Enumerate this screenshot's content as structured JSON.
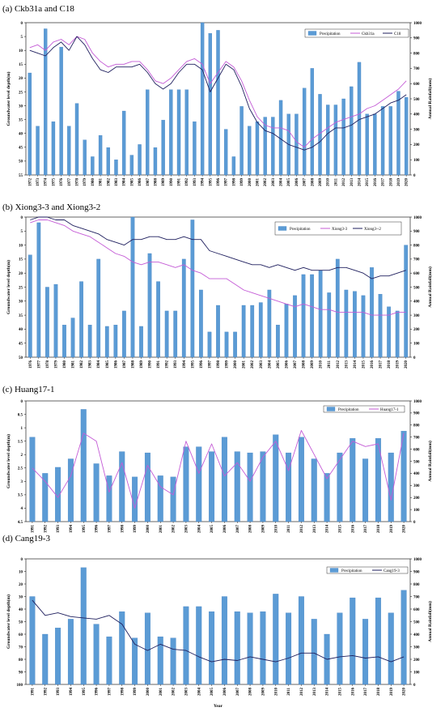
{
  "chart_data": [
    {
      "type": "bar",
      "title": "(a) Ckb31a and C18",
      "ylabel": "Groundwater level depth(m)",
      "y2label": "Annual Rainfall(mm)",
      "ylim": [
        55,
        0
      ],
      "y2lim": [
        0,
        1000
      ],
      "yticks": [
        0,
        5,
        10,
        15,
        20,
        25,
        30,
        35,
        40,
        45,
        50,
        55
      ],
      "y2ticks": [
        0,
        100,
        200,
        300,
        400,
        500,
        600,
        700,
        800,
        900,
        1000
      ],
      "years": [
        "1972",
        "1973",
        "1974",
        "1975",
        "1976",
        "1977",
        "1978",
        "1979",
        "1980",
        "1981",
        "1982",
        "1983",
        "1984",
        "1985",
        "1986",
        "1987",
        "1988",
        "1989",
        "1990",
        "1991",
        "1992",
        "1993",
        "1994",
        "1995",
        "1996",
        "1997",
        "1998",
        "1999",
        "2000",
        "2001",
        "2002",
        "2003",
        "2004",
        "2005",
        "2006",
        "2007",
        "2008",
        "2009",
        "2010",
        "2011",
        "2012",
        "2013",
        "2014",
        "2015",
        "2016",
        "2017",
        "2018",
        "2019",
        "2020"
      ],
      "series": [
        {
          "name": "Precipitation",
          "kind": "bar",
          "axis": "right",
          "color": "#5b9bd5",
          "values": [
            670,
            320,
            960,
            350,
            840,
            320,
            470,
            230,
            120,
            260,
            180,
            100,
            420,
            130,
            200,
            560,
            180,
            360,
            560,
            560,
            560,
            350,
            1000,
            930,
            950,
            300,
            120,
            450,
            320,
            350,
            380,
            380,
            490,
            400,
            400,
            570,
            700,
            530,
            460,
            460,
            500,
            580,
            740,
            400,
            400,
            450,
            450,
            550,
            510
          ]
        },
        {
          "name": "Ckb31a",
          "kind": "line",
          "axis": "left",
          "color": "#c45bd6",
          "values": [
            9,
            8,
            10,
            7,
            6,
            8,
            5,
            6,
            11,
            14,
            16,
            15,
            15,
            14,
            14,
            17,
            21,
            22,
            20,
            17,
            14,
            13,
            15,
            22,
            18,
            14,
            16,
            21,
            28,
            34,
            37,
            38,
            38,
            39,
            43,
            45,
            42,
            40,
            38,
            36,
            35,
            34,
            33,
            31,
            30,
            28,
            26,
            24,
            21
          ]
        },
        {
          "name": "C18",
          "kind": "line",
          "axis": "left",
          "color": "#1f1f5e",
          "values": [
            10,
            11,
            12,
            9,
            7,
            10,
            5,
            8,
            13,
            17,
            18,
            16,
            16,
            16,
            15,
            18,
            22,
            24,
            22,
            18,
            15,
            15,
            17,
            25,
            20,
            15,
            17,
            23,
            31,
            36,
            39,
            40,
            42,
            44,
            45,
            46,
            45,
            43,
            40,
            38,
            38,
            37,
            35,
            34,
            33,
            31,
            29,
            28,
            26
          ]
        }
      ],
      "legend": "top-right"
    },
    {
      "type": "bar",
      "title": "(b) Xiong3-3 and Xiong3-2",
      "ylabel": "Groundwater level depth(m)",
      "y2label": "Annual Rainfall(mm)",
      "ylim": [
        50,
        0
      ],
      "y2lim": [
        0,
        1000
      ],
      "yticks": [
        0,
        5,
        10,
        15,
        20,
        25,
        30,
        35,
        40,
        45,
        50
      ],
      "y2ticks": [
        0,
        100,
        200,
        300,
        400,
        500,
        600,
        700,
        800,
        900,
        1000
      ],
      "years": [
        "1976",
        "1977",
        "1978",
        "1979",
        "1980",
        "1981",
        "1982",
        "1983",
        "1984",
        "1985",
        "1986",
        "1987",
        "1988",
        "1989",
        "1990",
        "1991",
        "1992",
        "1993",
        "1994",
        "1995",
        "1996",
        "1997",
        "1998",
        "1999",
        "2000",
        "2001",
        "2002",
        "2003",
        "2004",
        "2005",
        "2006",
        "2007",
        "2008",
        "2009",
        "2010",
        "2011",
        "2012",
        "2013",
        "2014",
        "2015",
        "2016",
        "2017",
        "2018",
        "2019",
        "2020"
      ],
      "series": [
        {
          "name": "Precipitation",
          "kind": "bar",
          "axis": "right",
          "color": "#5b9bd5",
          "values": [
            730,
            960,
            500,
            520,
            230,
            280,
            540,
            230,
            700,
            220,
            230,
            330,
            1000,
            220,
            740,
            540,
            330,
            330,
            700,
            980,
            480,
            180,
            370,
            180,
            180,
            370,
            370,
            390,
            480,
            230,
            380,
            440,
            590,
            590,
            620,
            460,
            700,
            480,
            470,
            440,
            640,
            450,
            360,
            330,
            800
          ]
        },
        {
          "name": "Xiong3-3",
          "kind": "line",
          "axis": "left",
          "color": "#c45bd6",
          "values": [
            2,
            1,
            1,
            2,
            3,
            5,
            6,
            7,
            9,
            11,
            13,
            14,
            16,
            17,
            16,
            16,
            17,
            18,
            17,
            19,
            20,
            22,
            22,
            22,
            24,
            26,
            27,
            28,
            29,
            30,
            31,
            32,
            31,
            32,
            33,
            33,
            34,
            34,
            34,
            34,
            35,
            35,
            35,
            34,
            34
          ]
        },
        {
          "name": "Xiong3--2",
          "kind": "line",
          "axis": "left",
          "color": "#1f1f5e",
          "values": [
            1,
            0,
            0,
            1,
            1,
            3,
            4,
            5,
            6,
            8,
            9,
            10,
            8,
            8,
            7,
            7,
            8,
            8,
            7,
            8,
            8,
            12,
            13,
            14,
            15,
            16,
            17,
            17,
            18,
            17,
            18,
            19,
            18,
            19,
            19,
            19,
            18,
            18,
            19,
            20,
            22,
            21,
            21,
            20,
            19
          ]
        }
      ],
      "legend": "top-right"
    },
    {
      "type": "bar",
      "title": "(c) Huang17-1",
      "ylabel": "Groundwater level depth(m)",
      "y2label": "Annual Rainfall(mm)",
      "ylim": [
        4.5,
        0
      ],
      "y2lim": [
        0,
        1000
      ],
      "yticks": [
        "0",
        "0.5",
        "1",
        "1.5",
        "2",
        "2.5",
        "3",
        "3.5",
        "4",
        "4.5"
      ],
      "y2ticks": [
        0,
        100,
        200,
        300,
        400,
        500,
        600,
        700,
        800,
        900,
        1000
      ],
      "years": [
        "1991",
        "1992",
        "1993",
        "1994",
        "1995",
        "1996",
        "1997",
        "1998",
        "1999",
        "2000",
        "2001",
        "2002",
        "2003",
        "2004",
        "2005",
        "2006",
        "2007",
        "2008",
        "2009",
        "2010",
        "2011",
        "2012",
        "2013",
        "2014",
        "2015",
        "2016",
        "2017",
        "2018",
        "2019",
        "2020"
      ],
      "series": [
        {
          "name": "Precipitation",
          "kind": "bar",
          "axis": "right",
          "color": "#5b9bd5",
          "values": [
            700,
            400,
            450,
            520,
            930,
            480,
            380,
            580,
            370,
            570,
            380,
            370,
            620,
            620,
            580,
            700,
            580,
            570,
            580,
            720,
            570,
            700,
            520,
            400,
            570,
            690,
            520,
            690,
            570,
            750
          ]
        },
        {
          "name": "Huang17-1",
          "kind": "line",
          "axis": "left",
          "color": "#c45bd6",
          "values": [
            2.5,
            3,
            3.6,
            2.8,
            1.2,
            1.5,
            3.4,
            2.3,
            4.0,
            2.4,
            3.2,
            3.5,
            1.5,
            2.7,
            1.6,
            2.8,
            2.3,
            3.0,
            2.1,
            1.5,
            2.6,
            1.1,
            2.0,
            2.9,
            2.2,
            1.5,
            1.7,
            1.6,
            3.7,
            1.2
          ]
        }
      ],
      "legend": "top-right"
    },
    {
      "type": "bar",
      "title": "(d) Cang19-3",
      "ylabel": "Groundwater level depth(m)",
      "y2label": "Annual Rainfall(mm)",
      "xlabel": "Year",
      "ylim": [
        100,
        0
      ],
      "y2lim": [
        0,
        1000
      ],
      "yticks": [
        0,
        10,
        20,
        30,
        40,
        50,
        60,
        70,
        80,
        90,
        100
      ],
      "y2ticks": [
        0,
        100,
        200,
        300,
        400,
        500,
        600,
        700,
        800,
        900,
        1000
      ],
      "years": [
        "1991",
        "1992",
        "1993",
        "1994",
        "1995",
        "1996",
        "1997",
        "1998",
        "1999",
        "2000",
        "2001",
        "2002",
        "2003",
        "2004",
        "2005",
        "2006",
        "2007",
        "2008",
        "2009",
        "2010",
        "2011",
        "2012",
        "2013",
        "2014",
        "2015",
        "2016",
        "2017",
        "2018",
        "2019",
        "2020"
      ],
      "series": [
        {
          "name": "Precipitation",
          "kind": "bar",
          "axis": "right",
          "color": "#5b9bd5",
          "values": [
            700,
            400,
            450,
            520,
            930,
            480,
            380,
            580,
            370,
            570,
            380,
            370,
            620,
            620,
            580,
            700,
            580,
            570,
            580,
            720,
            570,
            700,
            520,
            400,
            570,
            690,
            520,
            690,
            570,
            750
          ]
        },
        {
          "name": "Cang19-3",
          "kind": "line",
          "axis": "left",
          "color": "#1f1f5e",
          "values": [
            33,
            45,
            43,
            46,
            47,
            48,
            45,
            52,
            68,
            73,
            68,
            72,
            73,
            78,
            82,
            80,
            81,
            78,
            80,
            82,
            79,
            75,
            75,
            80,
            78,
            77,
            79,
            78,
            82,
            78
          ]
        }
      ],
      "legend": "top-right"
    }
  ]
}
